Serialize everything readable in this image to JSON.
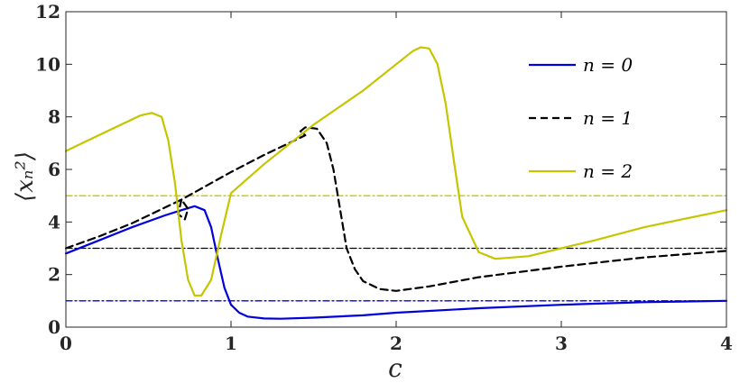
{
  "chart_data": {
    "type": "line",
    "xlabel": "c",
    "ylabel": "⟨xₙ²⟩",
    "xlim": [
      0,
      4
    ],
    "ylim": [
      0,
      12
    ],
    "xticks": [
      0,
      1,
      2,
      3,
      4
    ],
    "yticks": [
      0,
      2,
      4,
      6,
      8,
      10,
      12
    ],
    "xtick_labels": [
      "0",
      "1",
      "2",
      "3",
      "4"
    ],
    "ytick_labels": [
      "0",
      "2",
      "4",
      "6",
      "8",
      "10",
      "12"
    ],
    "grid": false,
    "legend_position": "top-right",
    "series": [
      {
        "name": "n = 0",
        "color": "#0000dd",
        "style": "solid",
        "x": [
          0,
          0.2,
          0.4,
          0.6,
          0.7,
          0.78,
          0.84,
          0.88,
          0.92,
          0.96,
          1.0,
          1.05,
          1.1,
          1.2,
          1.3,
          1.5,
          1.8,
          2.0,
          2.5,
          3.0,
          3.5,
          4.0
        ],
        "y": [
          2.8,
          3.3,
          3.8,
          4.25,
          4.45,
          4.6,
          4.45,
          3.8,
          2.6,
          1.5,
          0.85,
          0.55,
          0.4,
          0.33,
          0.32,
          0.36,
          0.45,
          0.55,
          0.72,
          0.85,
          0.95,
          1.0
        ]
      },
      {
        "name": "n = 1",
        "color": "#000000",
        "style": "dashed",
        "x": [
          0,
          0.2,
          0.4,
          0.6,
          0.7,
          0.74,
          0.72,
          0.68,
          0.7,
          0.8,
          1.0,
          1.2,
          1.4,
          1.45,
          1.42,
          1.45,
          1.52,
          1.58,
          1.62,
          1.66,
          1.7,
          1.75,
          1.8,
          1.9,
          2.0,
          2.2,
          2.5,
          3.0,
          3.5,
          4.0
        ],
        "y": [
          3.0,
          3.45,
          3.95,
          4.55,
          4.85,
          4.5,
          4.1,
          4.3,
          4.85,
          5.2,
          5.9,
          6.55,
          7.15,
          7.3,
          7.45,
          7.6,
          7.55,
          7.0,
          6.0,
          4.5,
          3.0,
          2.2,
          1.75,
          1.45,
          1.38,
          1.55,
          1.9,
          2.3,
          2.65,
          2.9
        ]
      },
      {
        "name": "n = 2",
        "color": "#c5c500",
        "style": "solid",
        "x": [
          0,
          0.1,
          0.3,
          0.45,
          0.52,
          0.58,
          0.62,
          0.66,
          0.7,
          0.74,
          0.78,
          0.82,
          0.88,
          0.94,
          1.0,
          1.2,
          1.5,
          1.8,
          2.0,
          2.1,
          2.15,
          2.2,
          2.25,
          2.3,
          2.35,
          2.4,
          2.5,
          2.6,
          2.8,
          3.0,
          3.2,
          3.5,
          4.0
        ],
        "y": [
          6.7,
          7.0,
          7.6,
          8.05,
          8.15,
          8.0,
          7.1,
          5.5,
          3.3,
          1.8,
          1.2,
          1.2,
          1.8,
          3.5,
          5.1,
          6.2,
          7.7,
          9.0,
          10.0,
          10.5,
          10.65,
          10.6,
          10.0,
          8.5,
          6.3,
          4.2,
          2.85,
          2.6,
          2.7,
          3.0,
          3.3,
          3.8,
          4.45
        ]
      },
      {
        "name": "",
        "color": "#0000dd",
        "style": "dashdot",
        "x": [
          0,
          4
        ],
        "y": [
          1,
          1
        ]
      },
      {
        "name": "",
        "color": "#000000",
        "style": "dashdot",
        "x": [
          0,
          4
        ],
        "y": [
          3,
          3
        ]
      },
      {
        "name": "",
        "color": "#c5c500",
        "style": "dashdot",
        "x": [
          0,
          4
        ],
        "y": [
          5,
          5
        ]
      }
    ]
  }
}
